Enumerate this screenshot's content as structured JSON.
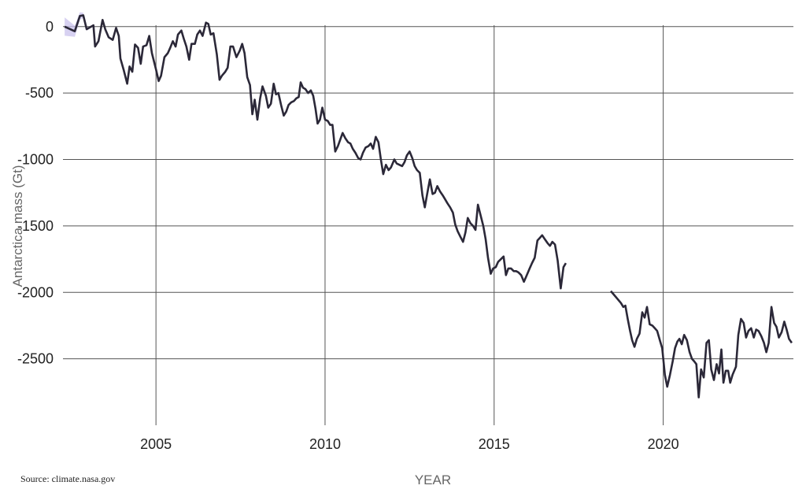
{
  "source_note": "Source: climate.nasa.gov",
  "chart_data": {
    "type": "line",
    "title": "",
    "xlabel": "YEAR",
    "ylabel": "Antarctica mass (Gt)",
    "xlim": [
      2002.25,
      2023.85
    ],
    "ylim": [
      -3000,
      200
    ],
    "x_ticks": [
      2005,
      2010,
      2015,
      2020
    ],
    "x_tick_labels": [
      "2005",
      "2010",
      "2015",
      "2020"
    ],
    "y_ticks": [
      0,
      -500,
      -1000,
      -1500,
      -2000,
      -2500
    ],
    "y_tick_labels": [
      "0",
      "-500",
      "-1000",
      "-1500",
      "-2000",
      "-2500"
    ],
    "grid": true,
    "colors": {
      "line": "#2b2838",
      "band": "#c9c1ec",
      "grid": "#555555"
    },
    "series": [
      {
        "values": [
          [
            2002.3,
            0
          ],
          [
            2002.6,
            -35
          ],
          [
            2002.75,
            80
          ],
          [
            2002.85,
            85
          ],
          [
            2002.95,
            -20
          ],
          [
            2003.05,
            -5
          ],
          [
            2003.15,
            10
          ],
          [
            2003.2,
            -150
          ],
          [
            2003.3,
            -110
          ],
          [
            2003.42,
            50
          ],
          [
            2003.5,
            -20
          ],
          [
            2003.6,
            -80
          ],
          [
            2003.72,
            -100
          ],
          [
            2003.82,
            -10
          ],
          [
            2003.9,
            -70
          ],
          [
            2003.95,
            -240
          ],
          [
            2004.05,
            -330
          ],
          [
            2004.15,
            -430
          ],
          [
            2004.22,
            -300
          ],
          [
            2004.3,
            -340
          ],
          [
            2004.38,
            -135
          ],
          [
            2004.47,
            -160
          ],
          [
            2004.55,
            -280
          ],
          [
            2004.62,
            -150
          ],
          [
            2004.72,
            -140
          ],
          [
            2004.8,
            -70
          ],
          [
            2004.88,
            -200
          ],
          [
            2005.0,
            -320
          ],
          [
            2005.08,
            -410
          ],
          [
            2005.15,
            -370
          ],
          [
            2005.25,
            -230
          ],
          [
            2005.35,
            -200
          ],
          [
            2005.42,
            -160
          ],
          [
            2005.5,
            -110
          ],
          [
            2005.58,
            -150
          ],
          [
            2005.65,
            -60
          ],
          [
            2005.75,
            -30
          ],
          [
            2005.82,
            -90
          ],
          [
            2005.9,
            -150
          ],
          [
            2005.98,
            -250
          ],
          [
            2006.05,
            -130
          ],
          [
            2006.15,
            -130
          ],
          [
            2006.22,
            -60
          ],
          [
            2006.3,
            -30
          ],
          [
            2006.38,
            -70
          ],
          [
            2006.48,
            30
          ],
          [
            2006.55,
            20
          ],
          [
            2006.62,
            -60
          ],
          [
            2006.7,
            -50
          ],
          [
            2006.8,
            -210
          ],
          [
            2006.88,
            -400
          ],
          [
            2006.95,
            -370
          ],
          [
            2007.05,
            -340
          ],
          [
            2007.12,
            -310
          ],
          [
            2007.2,
            -150
          ],
          [
            2007.28,
            -150
          ],
          [
            2007.38,
            -230
          ],
          [
            2007.48,
            -180
          ],
          [
            2007.55,
            -130
          ],
          [
            2007.62,
            -200
          ],
          [
            2007.7,
            -380
          ],
          [
            2007.78,
            -440
          ],
          [
            2007.85,
            -660
          ],
          [
            2007.92,
            -550
          ],
          [
            2008.0,
            -700
          ],
          [
            2008.08,
            -540
          ],
          [
            2008.15,
            -450
          ],
          [
            2008.25,
            -520
          ],
          [
            2008.32,
            -610
          ],
          [
            2008.4,
            -580
          ],
          [
            2008.48,
            -430
          ],
          [
            2008.55,
            -510
          ],
          [
            2008.62,
            -500
          ],
          [
            2008.7,
            -590
          ],
          [
            2008.78,
            -670
          ],
          [
            2008.85,
            -640
          ],
          [
            2008.92,
            -590
          ],
          [
            2009.0,
            -570
          ],
          [
            2009.08,
            -560
          ],
          [
            2009.15,
            -540
          ],
          [
            2009.22,
            -530
          ],
          [
            2009.28,
            -420
          ],
          [
            2009.35,
            -460
          ],
          [
            2009.42,
            -470
          ],
          [
            2009.5,
            -500
          ],
          [
            2009.58,
            -480
          ],
          [
            2009.65,
            -520
          ],
          [
            2009.72,
            -620
          ],
          [
            2009.78,
            -730
          ],
          [
            2009.85,
            -700
          ],
          [
            2009.92,
            -610
          ],
          [
            2010.0,
            -700
          ],
          [
            2010.08,
            -710
          ],
          [
            2010.15,
            -740
          ],
          [
            2010.22,
            -740
          ],
          [
            2010.3,
            -940
          ],
          [
            2010.38,
            -900
          ],
          [
            2010.45,
            -850
          ],
          [
            2010.52,
            -800
          ],
          [
            2010.6,
            -840
          ],
          [
            2010.68,
            -870
          ],
          [
            2010.75,
            -880
          ],
          [
            2010.82,
            -920
          ],
          [
            2010.9,
            -950
          ],
          [
            2010.98,
            -990
          ],
          [
            2011.05,
            -1000
          ],
          [
            2011.12,
            -950
          ],
          [
            2011.2,
            -910
          ],
          [
            2011.28,
            -900
          ],
          [
            2011.35,
            -880
          ],
          [
            2011.42,
            -920
          ],
          [
            2011.5,
            -830
          ],
          [
            2011.58,
            -870
          ],
          [
            2011.65,
            -1000
          ],
          [
            2011.72,
            -1110
          ],
          [
            2011.8,
            -1040
          ],
          [
            2011.88,
            -1080
          ],
          [
            2011.95,
            -1060
          ],
          [
            2012.05,
            -1000
          ],
          [
            2012.12,
            -1030
          ],
          [
            2012.2,
            -1040
          ],
          [
            2012.28,
            -1050
          ],
          [
            2012.35,
            -1020
          ],
          [
            2012.42,
            -970
          ],
          [
            2012.5,
            -940
          ],
          [
            2012.58,
            -990
          ],
          [
            2012.65,
            -1050
          ],
          [
            2012.72,
            -1080
          ],
          [
            2012.8,
            -1100
          ],
          [
            2012.88,
            -1270
          ],
          [
            2012.95,
            -1360
          ],
          [
            2013.02,
            -1260
          ],
          [
            2013.1,
            -1150
          ],
          [
            2013.18,
            -1260
          ],
          [
            2013.25,
            -1250
          ],
          [
            2013.32,
            -1200
          ],
          [
            2013.4,
            -1240
          ],
          [
            2013.48,
            -1270
          ],
          [
            2013.55,
            -1300
          ],
          [
            2013.62,
            -1330
          ],
          [
            2013.7,
            -1360
          ],
          [
            2013.78,
            -1400
          ],
          [
            2013.85,
            -1490
          ],
          [
            2013.92,
            -1540
          ],
          [
            2014.0,
            -1580
          ],
          [
            2014.08,
            -1620
          ],
          [
            2014.15,
            -1550
          ],
          [
            2014.22,
            -1440
          ],
          [
            2014.3,
            -1480
          ],
          [
            2014.38,
            -1500
          ],
          [
            2014.45,
            -1530
          ],
          [
            2014.52,
            -1340
          ],
          [
            2014.6,
            -1420
          ],
          [
            2014.68,
            -1500
          ],
          [
            2014.75,
            -1600
          ],
          [
            2014.82,
            -1740
          ],
          [
            2014.9,
            -1860
          ],
          [
            2014.97,
            -1820
          ],
          [
            2015.05,
            -1810
          ],
          [
            2015.12,
            -1770
          ],
          [
            2015.2,
            -1750
          ],
          [
            2015.28,
            -1730
          ],
          [
            2015.35,
            -1870
          ],
          [
            2015.42,
            -1820
          ],
          [
            2015.5,
            -1820
          ],
          [
            2015.58,
            -1840
          ],
          [
            2015.65,
            -1840
          ],
          [
            2015.72,
            -1850
          ],
          [
            2015.8,
            -1870
          ],
          [
            2015.88,
            -1920
          ],
          [
            2015.95,
            -1880
          ],
          [
            2016.05,
            -1820
          ],
          [
            2016.12,
            -1780
          ],
          [
            2016.2,
            -1740
          ],
          [
            2016.28,
            -1610
          ],
          [
            2016.35,
            -1590
          ],
          [
            2016.42,
            -1570
          ],
          [
            2016.5,
            -1600
          ],
          [
            2016.58,
            -1630
          ],
          [
            2016.65,
            -1650
          ],
          [
            2016.72,
            -1620
          ],
          [
            2016.8,
            -1640
          ],
          [
            2016.88,
            -1760
          ],
          [
            2016.97,
            -1970
          ],
          [
            2017.05,
            -1810
          ],
          [
            2017.12,
            -1780
          ],
          null,
          [
            2018.45,
            -1990
          ],
          [
            2018.55,
            -2020
          ],
          [
            2018.65,
            -2050
          ],
          [
            2018.75,
            -2080
          ],
          [
            2018.82,
            -2110
          ],
          [
            2018.88,
            -2100
          ],
          [
            2018.95,
            -2200
          ],
          [
            2019.02,
            -2290
          ],
          [
            2019.08,
            -2360
          ],
          [
            2019.15,
            -2410
          ],
          [
            2019.22,
            -2350
          ],
          [
            2019.3,
            -2310
          ],
          [
            2019.38,
            -2150
          ],
          [
            2019.45,
            -2190
          ],
          [
            2019.52,
            -2110
          ],
          [
            2019.6,
            -2240
          ],
          [
            2019.68,
            -2250
          ],
          [
            2019.75,
            -2270
          ],
          [
            2019.82,
            -2290
          ],
          [
            2019.9,
            -2360
          ],
          [
            2019.97,
            -2420
          ],
          [
            2020.05,
            -2620
          ],
          [
            2020.12,
            -2710
          ],
          [
            2020.2,
            -2620
          ],
          [
            2020.28,
            -2520
          ],
          [
            2020.35,
            -2420
          ],
          [
            2020.42,
            -2370
          ],
          [
            2020.48,
            -2350
          ],
          [
            2020.55,
            -2390
          ],
          [
            2020.62,
            -2320
          ],
          [
            2020.7,
            -2360
          ],
          [
            2020.78,
            -2450
          ],
          [
            2020.85,
            -2500
          ],
          [
            2020.92,
            -2520
          ],
          [
            2020.98,
            -2540
          ],
          [
            2021.05,
            -2790
          ],
          [
            2021.12,
            -2580
          ],
          [
            2021.2,
            -2640
          ],
          [
            2021.28,
            -2380
          ],
          [
            2021.35,
            -2360
          ],
          [
            2021.42,
            -2580
          ],
          [
            2021.5,
            -2660
          ],
          [
            2021.58,
            -2540
          ],
          [
            2021.65,
            -2610
          ],
          [
            2021.72,
            -2430
          ],
          [
            2021.78,
            -2680
          ],
          [
            2021.85,
            -2590
          ],
          [
            2021.92,
            -2590
          ],
          [
            2021.98,
            -2680
          ],
          [
            2022.05,
            -2620
          ],
          [
            2022.15,
            -2560
          ],
          [
            2022.22,
            -2320
          ],
          [
            2022.3,
            -2200
          ],
          [
            2022.38,
            -2230
          ],
          [
            2022.45,
            -2340
          ],
          [
            2022.52,
            -2290
          ],
          [
            2022.6,
            -2270
          ],
          [
            2022.68,
            -2340
          ],
          [
            2022.75,
            -2280
          ],
          [
            2022.82,
            -2290
          ],
          [
            2022.9,
            -2330
          ],
          [
            2022.98,
            -2380
          ],
          [
            2023.05,
            -2450
          ],
          [
            2023.12,
            -2380
          ],
          [
            2023.2,
            -2110
          ],
          [
            2023.28,
            -2230
          ],
          [
            2023.35,
            -2260
          ],
          [
            2023.42,
            -2340
          ],
          [
            2023.5,
            -2300
          ],
          [
            2023.58,
            -2220
          ],
          [
            2023.65,
            -2280
          ],
          [
            2023.72,
            -2350
          ],
          [
            2023.8,
            -2380
          ]
        ]
      }
    ]
  }
}
